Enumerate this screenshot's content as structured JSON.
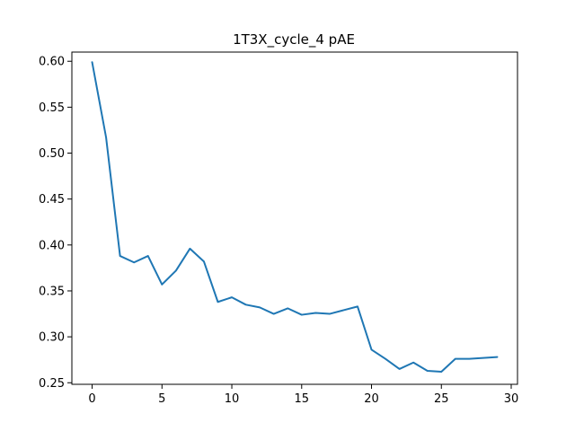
{
  "chart_data": {
    "type": "line",
    "title": "1T3X_cycle_4 pAE",
    "xlabel": "",
    "ylabel": "",
    "xlim": [
      -1.45,
      30.45
    ],
    "ylim": [
      0.2483,
      0.61
    ],
    "xticks": [
      0,
      5,
      10,
      15,
      20,
      25,
      30
    ],
    "yticks": [
      0.25,
      0.3,
      0.35,
      0.4,
      0.45,
      0.5,
      0.55,
      0.6
    ],
    "grid": false,
    "legend": "none",
    "series": [
      {
        "color": "#1f77b4",
        "x": [
          0,
          1,
          2,
          3,
          4,
          5,
          6,
          7,
          8,
          9,
          10,
          11,
          12,
          13,
          14,
          15,
          16,
          17,
          18,
          19,
          20,
          21,
          22,
          23,
          24,
          25,
          26,
          27,
          28,
          29
        ],
        "y": [
          0.599,
          0.517,
          0.388,
          0.381,
          0.388,
          0.357,
          0.372,
          0.396,
          0.382,
          0.338,
          0.343,
          0.335,
          0.332,
          0.325,
          0.331,
          0.324,
          0.326,
          0.325,
          0.329,
          0.333,
          0.286,
          0.276,
          0.265,
          0.272,
          0.263,
          0.262,
          0.276,
          0.276,
          0.277,
          0.278
        ]
      }
    ]
  }
}
